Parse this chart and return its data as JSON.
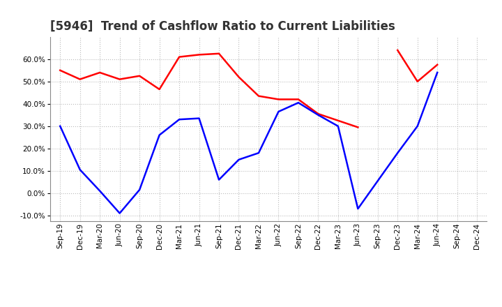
{
  "title": "[5946]  Trend of Cashflow Ratio to Current Liabilities",
  "x_labels": [
    "Sep-19",
    "Dec-19",
    "Mar-20",
    "Jun-20",
    "Sep-20",
    "Dec-20",
    "Mar-21",
    "Jun-21",
    "Sep-21",
    "Dec-21",
    "Mar-22",
    "Jun-22",
    "Sep-22",
    "Dec-22",
    "Mar-23",
    "Jun-23",
    "Sep-23",
    "Dec-23",
    "Mar-24",
    "Jun-24",
    "Sep-24",
    "Dec-24"
  ],
  "operating_cf": [
    55.0,
    51.0,
    54.0,
    51.0,
    52.5,
    46.5,
    61.0,
    62.0,
    62.5,
    52.0,
    43.5,
    42.0,
    42.0,
    35.5,
    32.5,
    29.5,
    null,
    64.0,
    50.0,
    57.5,
    null,
    null
  ],
  "free_cf": [
    30.0,
    10.5,
    1.0,
    -9.0,
    1.5,
    26.0,
    33.0,
    33.5,
    6.0,
    15.0,
    18.0,
    36.5,
    40.5,
    35.0,
    30.0,
    -7.0,
    5.5,
    18.0,
    30.0,
    54.0,
    null,
    null
  ],
  "operating_color": "#FF0000",
  "free_color": "#0000FF",
  "ylim": [
    -12.5,
    70
  ],
  "yticks": [
    -10,
    0,
    10,
    20,
    30,
    40,
    50,
    60
  ],
  "background_color": "#FFFFFF",
  "grid_color": "#AAAAAA",
  "title_fontsize": 12,
  "legend_fontsize": 9
}
